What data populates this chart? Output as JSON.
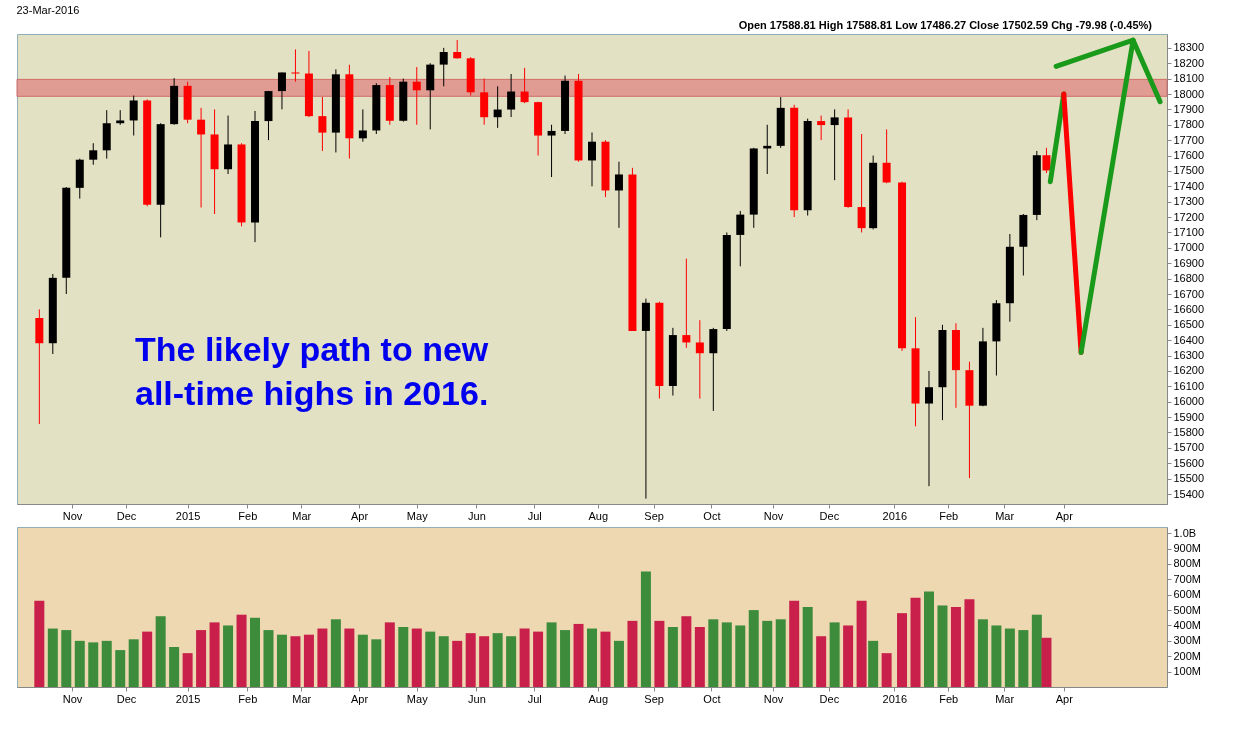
{
  "chart_data": [
    {
      "type": "candlestick",
      "title": "23-Mar-2016",
      "annotations": [
        "The likely path to new all-time highs in 2016.",
        "Open 17588.81  High 17588.81  Low 17486.27  Close 17502.59  Chg -79.98 (-0.45%)"
      ],
      "x": [
        "2014-10-17",
        "2014-10-24",
        "2014-10-31",
        "2014-11-07",
        "2014-11-14",
        "2014-11-21",
        "2014-11-28",
        "2014-12-05",
        "2014-12-12",
        "2014-12-19",
        "2014-12-26",
        "2015-01-02",
        "2015-01-09",
        "2015-01-16",
        "2015-01-23",
        "2015-01-30",
        "2015-02-06",
        "2015-02-13",
        "2015-02-20",
        "2015-02-27",
        "2015-03-06",
        "2015-03-13",
        "2015-03-20",
        "2015-03-27",
        "2015-04-03",
        "2015-04-10",
        "2015-04-17",
        "2015-04-24",
        "2015-05-01",
        "2015-05-08",
        "2015-05-15",
        "2015-05-22",
        "2015-05-29",
        "2015-06-05",
        "2015-06-12",
        "2015-06-19",
        "2015-06-26",
        "2015-07-03",
        "2015-07-10",
        "2015-07-17",
        "2015-07-24",
        "2015-07-31",
        "2015-08-07",
        "2015-08-14",
        "2015-08-21",
        "2015-08-28",
        "2015-09-04",
        "2015-09-11",
        "2015-09-18",
        "2015-09-25",
        "2015-10-02",
        "2015-10-09",
        "2015-10-16",
        "2015-10-23",
        "2015-10-30",
        "2015-11-06",
        "2015-11-13",
        "2015-11-20",
        "2015-11-27",
        "2015-12-04",
        "2015-12-11",
        "2015-12-18",
        "2015-12-24",
        "2015-12-31",
        "2016-01-08",
        "2016-01-15",
        "2016-01-22",
        "2016-01-29",
        "2016-02-05",
        "2016-02-12",
        "2016-02-19",
        "2016-02-26",
        "2016-03-04",
        "2016-03-11",
        "2016-03-18",
        "2016-03-23"
      ],
      "ohlc": [
        [
          16544,
          16600,
          15855,
          16380
        ],
        [
          16380,
          16830,
          16310,
          16805
        ],
        [
          16805,
          17395,
          16700,
          17390
        ],
        [
          17390,
          17580,
          17320,
          17573
        ],
        [
          17573,
          17680,
          17540,
          17634
        ],
        [
          17634,
          17895,
          17580,
          17810
        ],
        [
          17810,
          17895,
          17800,
          17828
        ],
        [
          17828,
          17990,
          17730,
          17958
        ],
        [
          17958,
          17965,
          17270,
          17280
        ],
        [
          17280,
          17810,
          17068,
          17804
        ],
        [
          17804,
          18103,
          17800,
          18053
        ],
        [
          18053,
          18080,
          17810,
          17833
        ],
        [
          17833,
          17910,
          17262,
          17737
        ],
        [
          17737,
          17900,
          17220,
          17511
        ],
        [
          17511,
          17860,
          17480,
          17672
        ],
        [
          17672,
          17680,
          17140,
          17165
        ],
        [
          17165,
          17890,
          17037,
          17824
        ],
        [
          17824,
          18020,
          17700,
          18019
        ],
        [
          18019,
          18140,
          17900,
          18140
        ],
        [
          18140,
          18290,
          18080,
          18133
        ],
        [
          18133,
          18280,
          17850,
          17856
        ],
        [
          17856,
          17980,
          17630,
          17749
        ],
        [
          17749,
          18160,
          17620,
          18128
        ],
        [
          18128,
          18190,
          17580,
          17712
        ],
        [
          17712,
          17900,
          17690,
          17763
        ],
        [
          17763,
          18070,
          17740,
          18058
        ],
        [
          18058,
          18110,
          17800,
          17826
        ],
        [
          17826,
          18100,
          17820,
          18080
        ],
        [
          18080,
          18175,
          17800,
          18024
        ],
        [
          18024,
          18200,
          17770,
          18191
        ],
        [
          18191,
          18300,
          18050,
          18273
        ],
        [
          18273,
          18351,
          18230,
          18232
        ],
        [
          18232,
          18240,
          17990,
          18011
        ],
        [
          18011,
          18100,
          17800,
          17849
        ],
        [
          17849,
          18050,
          17780,
          17899
        ],
        [
          17899,
          18130,
          17850,
          18016
        ],
        [
          18016,
          18170,
          17940,
          17947
        ],
        [
          17947,
          17950,
          17600,
          17730
        ],
        [
          17730,
          17800,
          17460,
          17760
        ],
        [
          17760,
          18120,
          17740,
          18086
        ],
        [
          18086,
          18130,
          17560,
          17568
        ],
        [
          17568,
          17750,
          17400,
          17690
        ],
        [
          17690,
          17700,
          17330,
          17373
        ],
        [
          17373,
          17560,
          17130,
          17477
        ],
        [
          17477,
          17520,
          16460,
          16460
        ],
        [
          16460,
          16670,
          15370,
          16643
        ],
        [
          16643,
          16650,
          16020,
          16102
        ],
        [
          16102,
          16480,
          16040,
          16433
        ],
        [
          16433,
          16930,
          16350,
          16385
        ],
        [
          16385,
          16530,
          16020,
          16315
        ],
        [
          16315,
          16480,
          15940,
          16472
        ],
        [
          16472,
          17100,
          16460,
          17084
        ],
        [
          17084,
          17240,
          16880,
          17216
        ],
        [
          17216,
          17650,
          17130,
          17646
        ],
        [
          17646,
          17800,
          17480,
          17663
        ],
        [
          17663,
          17980,
          17650,
          17910
        ],
        [
          17910,
          17930,
          17200,
          17245
        ],
        [
          17245,
          17840,
          17210,
          17824
        ],
        [
          17824,
          17860,
          17700,
          17798
        ],
        [
          17798,
          17900,
          17440,
          17848
        ],
        [
          17848,
          17900,
          17260,
          17265
        ],
        [
          17265,
          17740,
          17100,
          17128
        ],
        [
          17128,
          17600,
          17120,
          17553
        ],
        [
          17553,
          17770,
          17420,
          17425
        ],
        [
          17425,
          17430,
          16330,
          16347
        ],
        [
          16347,
          16550,
          15840,
          15988
        ],
        [
          15988,
          16200,
          15451,
          16094
        ],
        [
          16094,
          16500,
          15880,
          16466
        ],
        [
          16466,
          16510,
          15960,
          16205
        ],
        [
          16205,
          16260,
          15503,
          15974
        ],
        [
          15974,
          16480,
          15970,
          16392
        ],
        [
          16392,
          16660,
          16170,
          16640
        ],
        [
          16640,
          17090,
          16520,
          17007
        ],
        [
          17007,
          17220,
          16820,
          17214
        ],
        [
          17214,
          17630,
          17180,
          17602
        ],
        [
          17602,
          17650,
          17486,
          17503
        ]
      ],
      "colors": [
        "#ff0000",
        "#000000",
        "#000000",
        "#000000",
        "#000000",
        "#000000",
        "#000000",
        "#000000",
        "#ff0000",
        "#000000",
        "#000000",
        "#ff0000",
        "#ff0000",
        "#ff0000",
        "#000000",
        "#ff0000",
        "#000000",
        "#000000",
        "#000000",
        "#ff0000",
        "#ff0000",
        "#ff0000",
        "#000000",
        "#ff0000",
        "#000000",
        "#000000",
        "#ff0000",
        "#000000",
        "#ff0000",
        "#000000",
        "#000000",
        "#ff0000",
        "#ff0000",
        "#ff0000",
        "#000000",
        "#000000",
        "#ff0000",
        "#ff0000",
        "#000000",
        "#000000",
        "#ff0000",
        "#000000",
        "#ff0000",
        "#000000",
        "#ff0000",
        "#000000",
        "#ff0000",
        "#000000",
        "#ff0000",
        "#ff0000",
        "#000000",
        "#000000",
        "#000000",
        "#000000",
        "#000000",
        "#000000",
        "#ff0000",
        "#000000",
        "#ff0000",
        "#000000",
        "#ff0000",
        "#ff0000",
        "#000000",
        "#ff0000",
        "#ff0000",
        "#ff0000",
        "#000000",
        "#000000",
        "#ff0000",
        "#ff0000",
        "#000000",
        "#000000",
        "#000000",
        "#000000",
        "#000000",
        "#ff0000"
      ],
      "series": [
        {
          "type": "line",
          "color": "#1a9a1a",
          "x": [
            "2016-03-25",
            "2016-04-01"
          ],
          "values": [
            17430,
            18000
          ]
        },
        {
          "type": "line",
          "color": "#ff0000",
          "x": [
            "2016-04-01",
            "2016-04-10"
          ],
          "values": [
            18000,
            16320
          ]
        },
        {
          "type": "line",
          "color": "#1a9a1a",
          "x": [
            "2016-04-10",
            "2016-05-07",
            "2016-05-21"
          ],
          "values": [
            16320,
            18350,
            17950
          ]
        },
        {
          "type": "line",
          "color": "#1a9a1a",
          "x": [
            "2016-03-28",
            "2016-05-07"
          ],
          "values": [
            18180,
            18350
          ]
        }
      ],
      "bands": [
        {
          "axis": "y",
          "from": 17985,
          "to": 18095,
          "color": "#e0958d"
        }
      ],
      "xlim": [
        "2014-10-08",
        "2016-05-22"
      ],
      "xticks": [
        {
          "value": "2014-11-03",
          "label": "Nov"
        },
        {
          "value": "2014-12-01",
          "label": "Dec"
        },
        {
          "value": "2015-01-02",
          "label": "2015"
        },
        {
          "value": "2015-02-02",
          "label": "Feb"
        },
        {
          "value": "2015-03-02",
          "label": "Mar"
        },
        {
          "value": "2015-04-01",
          "label": "Apr"
        },
        {
          "value": "2015-05-01",
          "label": "May"
        },
        {
          "value": "2015-06-01",
          "label": "Jun"
        },
        {
          "value": "2015-07-01",
          "label": "Jul"
        },
        {
          "value": "2015-08-03",
          "label": "Aug"
        },
        {
          "value": "2015-09-01",
          "label": "Sep"
        },
        {
          "value": "2015-10-01",
          "label": "Oct"
        },
        {
          "value": "2015-11-02",
          "label": "Nov"
        },
        {
          "value": "2015-12-01",
          "label": "Dec"
        },
        {
          "value": "2016-01-04",
          "label": "2016"
        },
        {
          "value": "2016-02-01",
          "label": "Feb"
        },
        {
          "value": "2016-03-01",
          "label": "Mar"
        },
        {
          "value": "2016-04-01",
          "label": "Apr"
        }
      ],
      "ylim": [
        15335,
        18390
      ],
      "yticks": [
        15400,
        15500,
        15600,
        15700,
        15800,
        15900,
        16000,
        16100,
        16200,
        16300,
        16400,
        16500,
        16600,
        16700,
        16800,
        16900,
        17000,
        17100,
        17200,
        17300,
        17400,
        17500,
        17600,
        17700,
        17800,
        17900,
        18000,
        18100,
        18200,
        18300
      ],
      "grid": false
    },
    {
      "type": "bar",
      "x": [
        "2014-10-17",
        "2014-10-24",
        "2014-10-31",
        "2014-11-07",
        "2014-11-14",
        "2014-11-21",
        "2014-11-28",
        "2014-12-05",
        "2014-12-12",
        "2014-12-19",
        "2014-12-26",
        "2015-01-02",
        "2015-01-09",
        "2015-01-16",
        "2015-01-23",
        "2015-01-30",
        "2015-02-06",
        "2015-02-13",
        "2015-02-20",
        "2015-02-27",
        "2015-03-06",
        "2015-03-13",
        "2015-03-20",
        "2015-03-27",
        "2015-04-03",
        "2015-04-10",
        "2015-04-17",
        "2015-04-24",
        "2015-05-01",
        "2015-05-08",
        "2015-05-15",
        "2015-05-22",
        "2015-05-29",
        "2015-06-05",
        "2015-06-12",
        "2015-06-19",
        "2015-06-26",
        "2015-07-03",
        "2015-07-10",
        "2015-07-17",
        "2015-07-24",
        "2015-07-31",
        "2015-08-07",
        "2015-08-14",
        "2015-08-21",
        "2015-08-28",
        "2015-09-04",
        "2015-09-11",
        "2015-09-18",
        "2015-09-25",
        "2015-10-02",
        "2015-10-09",
        "2015-10-16",
        "2015-10-23",
        "2015-10-30",
        "2015-11-06",
        "2015-11-13",
        "2015-11-20",
        "2015-11-27",
        "2015-12-04",
        "2015-12-11",
        "2015-12-18",
        "2015-12-24",
        "2015-12-31",
        "2016-01-08",
        "2016-01-15",
        "2016-01-22",
        "2016-01-29",
        "2016-02-05",
        "2016-02-12",
        "2016-02-19",
        "2016-02-26",
        "2016-03-04",
        "2016-03-11",
        "2016-03-18",
        "2016-03-23"
      ],
      "values": [
        560000000,
        380000000,
        370000000,
        300000000,
        290000000,
        300000000,
        240000000,
        310000000,
        360000000,
        460000000,
        260000000,
        220000000,
        370000000,
        420000000,
        400000000,
        470000000,
        450000000,
        370000000,
        340000000,
        330000000,
        340000000,
        380000000,
        440000000,
        380000000,
        340000000,
        310000000,
        420000000,
        390000000,
        380000000,
        360000000,
        330000000,
        300000000,
        350000000,
        330000000,
        350000000,
        330000000,
        380000000,
        360000000,
        420000000,
        370000000,
        410000000,
        380000000,
        360000000,
        300000000,
        430000000,
        750000000,
        430000000,
        390000000,
        460000000,
        390000000,
        440000000,
        420000000,
        400000000,
        500000000,
        430000000,
        440000000,
        560000000,
        520000000,
        330000000,
        420000000,
        400000000,
        560000000,
        300000000,
        220000000,
        480000000,
        580000000,
        620000000,
        530000000,
        520000000,
        570000000,
        440000000,
        400000000,
        380000000,
        370000000,
        470000000,
        320000000
      ],
      "colors": [
        "#c8204a",
        "#3c8c3c",
        "#3c8c3c",
        "#3c8c3c",
        "#3c8c3c",
        "#3c8c3c",
        "#3c8c3c",
        "#3c8c3c",
        "#c8204a",
        "#3c8c3c",
        "#3c8c3c",
        "#c8204a",
        "#c8204a",
        "#c8204a",
        "#3c8c3c",
        "#c8204a",
        "#3c8c3c",
        "#3c8c3c",
        "#3c8c3c",
        "#c8204a",
        "#c8204a",
        "#c8204a",
        "#3c8c3c",
        "#c8204a",
        "#3c8c3c",
        "#3c8c3c",
        "#c8204a",
        "#3c8c3c",
        "#c8204a",
        "#3c8c3c",
        "#3c8c3c",
        "#c8204a",
        "#c8204a",
        "#c8204a",
        "#3c8c3c",
        "#3c8c3c",
        "#c8204a",
        "#c8204a",
        "#3c8c3c",
        "#3c8c3c",
        "#c8204a",
        "#3c8c3c",
        "#c8204a",
        "#3c8c3c",
        "#c8204a",
        "#3c8c3c",
        "#c8204a",
        "#3c8c3c",
        "#c8204a",
        "#c8204a",
        "#3c8c3c",
        "#3c8c3c",
        "#3c8c3c",
        "#3c8c3c",
        "#3c8c3c",
        "#3c8c3c",
        "#c8204a",
        "#3c8c3c",
        "#c8204a",
        "#3c8c3c",
        "#c8204a",
        "#c8204a",
        "#3c8c3c",
        "#c8204a",
        "#c8204a",
        "#c8204a",
        "#3c8c3c",
        "#3c8c3c",
        "#c8204a",
        "#c8204a",
        "#3c8c3c",
        "#3c8c3c",
        "#3c8c3c",
        "#3c8c3c",
        "#3c8c3c",
        "#c8204a"
      ],
      "xlim": [
        "2014-10-08",
        "2016-05-22"
      ],
      "xticks": [
        {
          "value": "2014-11-03",
          "label": "Nov"
        },
        {
          "value": "2014-12-01",
          "label": "Dec"
        },
        {
          "value": "2015-01-02",
          "label": "2015"
        },
        {
          "value": "2015-02-02",
          "label": "Feb"
        },
        {
          "value": "2015-03-02",
          "label": "Mar"
        },
        {
          "value": "2015-04-01",
          "label": "Apr"
        },
        {
          "value": "2015-05-01",
          "label": "May"
        },
        {
          "value": "2015-06-01",
          "label": "Jun"
        },
        {
          "value": "2015-07-01",
          "label": "Jul"
        },
        {
          "value": "2015-08-03",
          "label": "Aug"
        },
        {
          "value": "2015-09-01",
          "label": "Sep"
        },
        {
          "value": "2015-10-01",
          "label": "Oct"
        },
        {
          "value": "2015-11-02",
          "label": "Nov"
        },
        {
          "value": "2015-12-01",
          "label": "Dec"
        },
        {
          "value": "2016-01-04",
          "label": "2016"
        },
        {
          "value": "2016-02-01",
          "label": "Feb"
        },
        {
          "value": "2016-03-01",
          "label": "Mar"
        },
        {
          "value": "2016-04-01",
          "label": "Apr"
        }
      ],
      "ylim": [
        0,
        1040000000
      ],
      "yticks": [
        {
          "value": 100000000,
          "label": "100M"
        },
        {
          "value": 200000000,
          "label": "200M"
        },
        {
          "value": 300000000,
          "label": "300M"
        },
        {
          "value": 400000000,
          "label": "400M"
        },
        {
          "value": 500000000,
          "label": "500M"
        },
        {
          "value": 600000000,
          "label": "600M"
        },
        {
          "value": 700000000,
          "label": "700M"
        },
        {
          "value": 800000000,
          "label": "800M"
        },
        {
          "value": 900000000,
          "label": "900M"
        },
        {
          "value": 1000000000,
          "label": "1.0B"
        }
      ],
      "grid": false
    }
  ]
}
